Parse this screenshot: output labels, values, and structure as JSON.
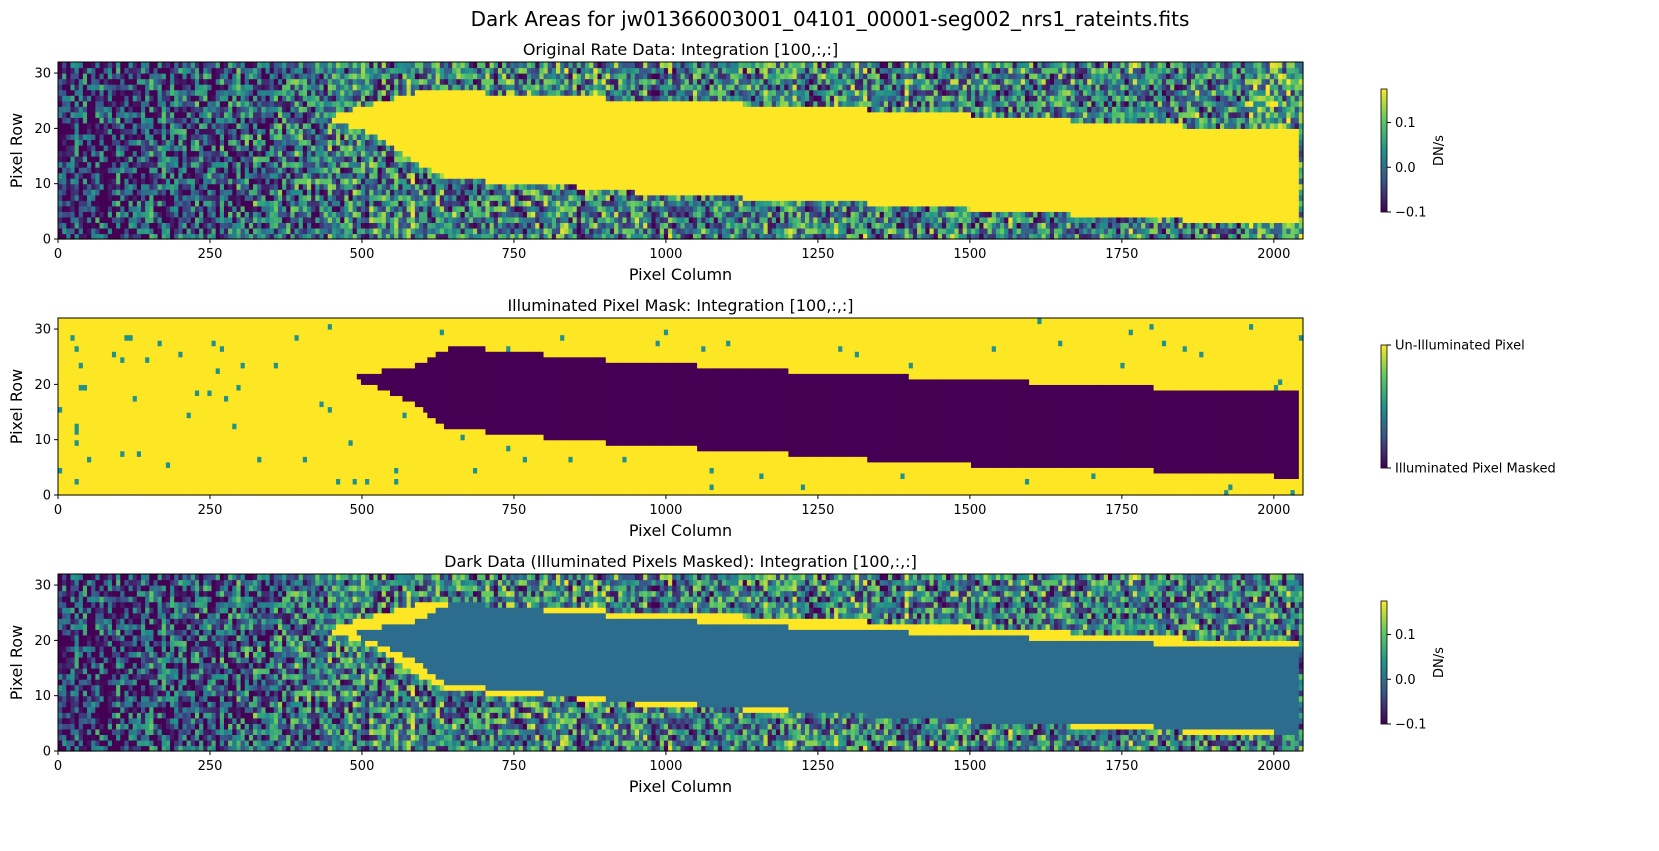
{
  "figure": {
    "suptitle": "Dark Areas for jw01366003001_04101_00001-seg002_nrs1_rateints.fits"
  },
  "colormap": {
    "name": "viridis",
    "stops": [
      "#440154",
      "#3b528b",
      "#21918c",
      "#5ec962",
      "#fde725"
    ],
    "masked_color": "#2c6d8e"
  },
  "chart_data": [
    {
      "type": "heatmap",
      "title": "Original Rate Data: Integration [100,:,:]",
      "xlabel": "Pixel Column",
      "ylabel": "Pixel Row",
      "xlim": [
        0,
        2048
      ],
      "ylim": [
        0,
        32
      ],
      "xticks": [
        0,
        250,
        500,
        750,
        1000,
        1250,
        1500,
        1750,
        2000
      ],
      "yticks": [
        0,
        10,
        20,
        30
      ],
      "colorbar": {
        "label": "DN/s",
        "range": [
          -0.1,
          0.175
        ],
        "ticks": [
          -0.1,
          0.0,
          0.1
        ],
        "tick_labels": [
          "−0.1",
          "0.0",
          "0.1"
        ]
      },
      "mode": "data",
      "trace_boundary": {
        "columns": [
          440,
          520,
          600,
          650,
          700,
          800,
          1000,
          1250,
          1500,
          1750,
          1950,
          2040
        ],
        "upper_row": [
          22,
          24.5,
          27,
          27.5,
          26.5,
          26,
          25,
          24,
          22.5,
          21,
          20,
          20
        ],
        "lower_row": [
          22,
          19,
          13,
          11,
          10.5,
          10,
          8,
          7,
          5.5,
          4,
          3,
          3
        ]
      }
    },
    {
      "type": "heatmap",
      "title": "Illuminated Pixel Mask: Integration [100,:,:]",
      "xlabel": "Pixel Column",
      "ylabel": "Pixel Row",
      "xlim": [
        0,
        2048
      ],
      "ylim": [
        0,
        32
      ],
      "xticks": [
        0,
        250,
        500,
        750,
        1000,
        1250,
        1500,
        1750,
        2000
      ],
      "yticks": [
        0,
        10,
        20,
        30
      ],
      "colorbar": {
        "label": "",
        "tick_labels": [
          "Illuminated Pixel Masked",
          "Un-Illuminated Pixel"
        ]
      },
      "mode": "mask",
      "mask_boundary": {
        "columns": [
          490,
          580,
          640,
          700,
          900,
          1200,
          1400,
          1600,
          1800,
          2000,
          2040
        ],
        "upper_row": [
          22,
          23,
          26.5,
          26.5,
          24.5,
          22.5,
          21.5,
          20.5,
          19.5,
          18.5,
          18.5
        ],
        "lower_row": [
          21,
          17,
          12,
          11.5,
          9.5,
          7.5,
          6,
          5,
          4.5,
          3.5,
          3.5
        ]
      }
    },
    {
      "type": "heatmap",
      "title": "Dark Data (Illuminated Pixels Masked): Integration [100,:,:]",
      "xlabel": "Pixel Column",
      "ylabel": "Pixel Row",
      "xlim": [
        0,
        2048
      ],
      "ylim": [
        0,
        32
      ],
      "xticks": [
        0,
        250,
        500,
        750,
        1000,
        1250,
        1500,
        1750,
        2000
      ],
      "yticks": [
        0,
        10,
        20,
        30
      ],
      "colorbar": {
        "label": "DN/s",
        "range": [
          -0.1,
          0.175
        ],
        "ticks": [
          -0.1,
          0.0,
          0.1
        ],
        "tick_labels": [
          "−0.1",
          "0.0",
          "0.1"
        ]
      },
      "mode": "masked"
    }
  ]
}
